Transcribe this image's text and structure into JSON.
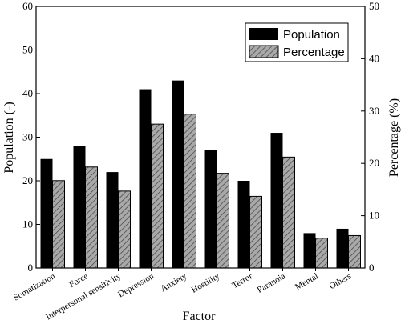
{
  "chart_data": {
    "type": "bar",
    "categories": [
      "Somatization",
      "Force",
      "Interpersonal sensitivity",
      "Depression",
      "Anxiety",
      "Hostility",
      "Terror",
      "Paranoia",
      "Mental",
      "Others"
    ],
    "series": [
      {
        "name": "Population",
        "axis": "left",
        "color": "#000000",
        "pattern": "solid",
        "values": [
          25,
          28,
          22,
          41,
          43,
          27,
          20,
          31,
          8,
          9
        ]
      },
      {
        "name": "Percentage",
        "axis": "right",
        "color": "#8a8a8a",
        "pattern": "diagonal-hatch",
        "values": [
          16.7,
          19.3,
          14.7,
          27.5,
          29.4,
          18.1,
          13.7,
          21.2,
          5.7,
          6.2
        ]
      }
    ],
    "xlabel": "Factor",
    "ylabel": "Population (-)",
    "ylabel_right": "Percentage (%)",
    "ylim": [
      0,
      60
    ],
    "ylim_right": [
      0,
      50
    ],
    "yticks": [
      0,
      10,
      20,
      30,
      40,
      50,
      60
    ],
    "yticks_right": [
      0,
      10,
      20,
      30,
      40,
      50
    ],
    "legend_position": "top-right",
    "grid": false
  }
}
